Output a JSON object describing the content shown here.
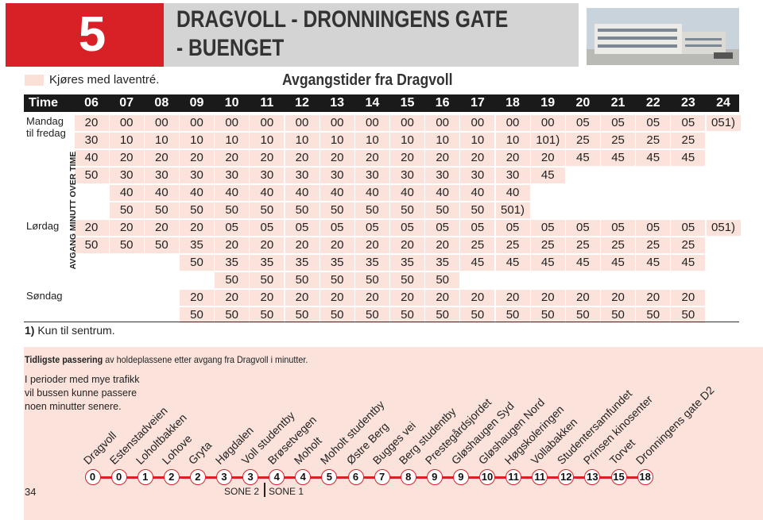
{
  "header": {
    "route": "5",
    "title_line1": "DRAGVOLL - DRONNINGENS GATE",
    "title_line2": "- BUENGET"
  },
  "legend": "Kjøres med laventré.",
  "timetable": {
    "title": "Avgangstider fra Dragvoll",
    "corner": "Time",
    "hours": [
      "06",
      "07",
      "08",
      "09",
      "10",
      "11",
      "12",
      "13",
      "14",
      "15",
      "16",
      "17",
      "18",
      "19",
      "20",
      "21",
      "22",
      "23",
      "24"
    ],
    "side_label": "AVGANG MINUTT OVER TIME",
    "groups": [
      {
        "label": "Mandag til fredag",
        "rows": [
          [
            "20",
            "00",
            "00",
            "00",
            "00",
            "00",
            "00",
            "00",
            "00",
            "00",
            "00",
            "00",
            "00",
            "00",
            "05",
            "05",
            "05",
            "05",
            "051)"
          ],
          [
            "30",
            "10",
            "10",
            "10",
            "10",
            "10",
            "10",
            "10",
            "10",
            "10",
            "10",
            "10",
            "10",
            "101)",
            "25",
            "25",
            "25",
            "25",
            null
          ],
          [
            "40",
            "20",
            "20",
            "20",
            "20",
            "20",
            "20",
            "20",
            "20",
            "20",
            "20",
            "20",
            "20",
            "20",
            "45",
            "45",
            "45",
            "45",
            null
          ],
          [
            "50",
            "30",
            "30",
            "30",
            "30",
            "30",
            "30",
            "30",
            "30",
            "30",
            "30",
            "30",
            "30",
            "45",
            null,
            null,
            null,
            null,
            null
          ],
          [
            null,
            "40",
            "40",
            "40",
            "40",
            "40",
            "40",
            "40",
            "40",
            "40",
            "40",
            "40",
            "40",
            null,
            null,
            null,
            null,
            null,
            null
          ],
          [
            null,
            "50",
            "50",
            "50",
            "50",
            "50",
            "50",
            "50",
            "50",
            "50",
            "50",
            "50",
            "501)",
            null,
            null,
            null,
            null,
            null,
            null
          ]
        ]
      },
      {
        "label": "Lørdag",
        "rows": [
          [
            "20",
            "20",
            "20",
            "20",
            "05",
            "05",
            "05",
            "05",
            "05",
            "05",
            "05",
            "05",
            "05",
            "05",
            "05",
            "05",
            "05",
            "05",
            "051)"
          ],
          [
            "50",
            "50",
            "50",
            "35",
            "20",
            "20",
            "20",
            "20",
            "20",
            "20",
            "20",
            "25",
            "25",
            "25",
            "25",
            "25",
            "25",
            "25",
            null
          ],
          [
            null,
            null,
            null,
            "50",
            "35",
            "35",
            "35",
            "35",
            "35",
            "35",
            "35",
            "45",
            "45",
            "45",
            "45",
            "45",
            "45",
            "45",
            null
          ],
          [
            null,
            null,
            null,
            null,
            "50",
            "50",
            "50",
            "50",
            "50",
            "50",
            "50",
            null,
            null,
            null,
            null,
            null,
            null,
            null,
            null
          ]
        ]
      },
      {
        "label": "Søndag",
        "rows": [
          [
            null,
            null,
            null,
            "20",
            "20",
            "20",
            "20",
            "20",
            "20",
            "20",
            "20",
            "20",
            "20",
            "20",
            "20",
            "20",
            "20",
            "20",
            null
          ],
          [
            null,
            null,
            null,
            "50",
            "50",
            "50",
            "50",
            "50",
            "50",
            "50",
            "50",
            "50",
            "50",
            "50",
            "50",
            "50",
            "50",
            "50",
            null
          ]
        ]
      }
    ]
  },
  "footnote": {
    "marker": "1)",
    "text": "Kun til sentrum."
  },
  "passing": {
    "intro_bold": "Tidligste passering",
    "intro_rest": "av holdeplassene etter avgang fra Dragvoll i minutter.",
    "note": "I perioder med mye trafikk vil bussen kunne passere noen minutter senere.",
    "stops": [
      {
        "name": "Dragvoll",
        "minute": 0
      },
      {
        "name": "Estenstadveien",
        "minute": 0
      },
      {
        "name": "Loholtbakken",
        "minute": 1
      },
      {
        "name": "Lohove",
        "minute": 2
      },
      {
        "name": "Gryta",
        "minute": 2
      },
      {
        "name": "Høgdalen",
        "minute": 3
      },
      {
        "name": "Voll studentby",
        "minute": 3
      },
      {
        "name": "Brøsetvegen",
        "minute": 4
      },
      {
        "name": "Moholt",
        "minute": 4
      },
      {
        "name": "Moholt studentby",
        "minute": 5
      },
      {
        "name": "Østre Berg",
        "minute": 6
      },
      {
        "name": "Bugges vei",
        "minute": 7
      },
      {
        "name": "Berg studentby",
        "minute": 8
      },
      {
        "name": "Prestegårdsjordet",
        "minute": 9
      },
      {
        "name": "Gløshaugen Syd",
        "minute": 9
      },
      {
        "name": "Gløshaugen Nord",
        "minute": 10
      },
      {
        "name": "Høgskoleringen",
        "minute": 11
      },
      {
        "name": "Vollabakken",
        "minute": 11
      },
      {
        "name": "Studentersamfundet",
        "minute": 12
      },
      {
        "name": "Prinsen kinosenter",
        "minute": 13
      },
      {
        "name": "Torvet",
        "minute": 15
      },
      {
        "name": "Dronningens gate D2",
        "minute": 18
      }
    ],
    "zones": [
      "SONE 2",
      "SONE 1"
    ]
  },
  "page_number": "34"
}
